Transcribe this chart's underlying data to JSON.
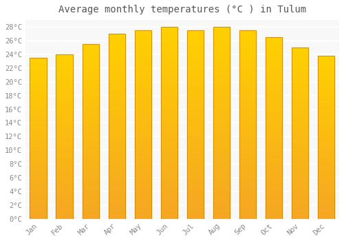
{
  "title": "Average monthly temperatures (°C ) in Tulum",
  "months": [
    "Jan",
    "Feb",
    "Mar",
    "Apr",
    "May",
    "Jun",
    "Jul",
    "Aug",
    "Sep",
    "Oct",
    "Nov",
    "Dec"
  ],
  "values": [
    23.5,
    24.0,
    25.5,
    27.0,
    27.5,
    28.0,
    27.5,
    28.0,
    27.5,
    26.5,
    25.0,
    23.8
  ],
  "ylim": [
    0,
    29
  ],
  "yticks": [
    0,
    2,
    4,
    6,
    8,
    10,
    12,
    14,
    16,
    18,
    20,
    22,
    24,
    26,
    28
  ],
  "ytick_labels": [
    "0°C",
    "2°C",
    "4°C",
    "6°C",
    "8°C",
    "10°C",
    "12°C",
    "14°C",
    "16°C",
    "18°C",
    "20°C",
    "22°C",
    "24°C",
    "26°C",
    "28°C"
  ],
  "background_color": "#ffffff",
  "plot_bg_color": "#f8f8f8",
  "grid_color": "#ffffff",
  "title_fontsize": 10,
  "tick_fontsize": 7.5,
  "bar_width": 0.65,
  "bar_color_bottom": "#F5A623",
  "bar_color_top": "#FFD000",
  "bar_edge_color": "#CC8800"
}
